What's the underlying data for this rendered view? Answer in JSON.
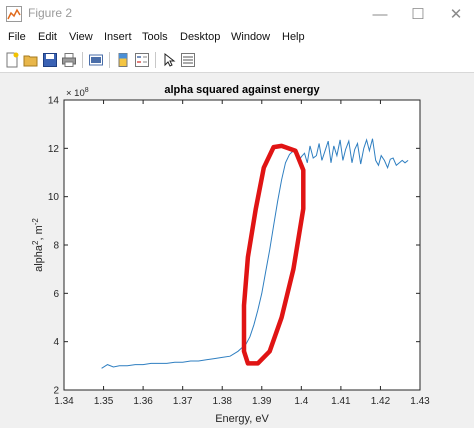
{
  "window": {
    "title": "Figure 2",
    "controls": {
      "minimize": "—",
      "maximize": "☐",
      "close": "✕"
    }
  },
  "menu": [
    "File",
    "Edit",
    "View",
    "Insert",
    "Tools",
    "Desktop",
    "Window",
    "Help"
  ],
  "toolbar": {
    "icons": [
      "new-figure-icon",
      "open-file-icon",
      "save-icon",
      "print-icon",
      "link-plot-icon",
      "insert-colorbar-icon",
      "insert-legend-icon",
      "edit-plot-icon",
      "property-inspector-icon"
    ]
  },
  "chart_data": {
    "type": "line",
    "title": "alpha squared against energy",
    "xlabel": "Energy, eV",
    "ylabel_base": "alpha",
    "ylabel_sup1": "2",
    "ylabel_mid": ", m",
    "ylabel_sup2": "-2",
    "y_multiplier_base": "× 10",
    "y_multiplier_exp": "8",
    "xlim": [
      1.34,
      1.43
    ],
    "ylim": [
      2,
      14
    ],
    "x_ticks": [
      "1.34",
      "1.35",
      "1.36",
      "1.37",
      "1.38",
      "1.39",
      "1.4",
      "1.41",
      "1.42",
      "1.43"
    ],
    "y_ticks": [
      "2",
      "4",
      "6",
      "8",
      "10",
      "12",
      "14"
    ],
    "grid": false,
    "line_color": "#2f7fc1",
    "annotation_color": "#e01414",
    "series": [
      {
        "x": [
          1.3495,
          1.351,
          1.3525,
          1.354,
          1.356,
          1.358,
          1.36,
          1.362,
          1.364,
          1.366,
          1.368,
          1.37,
          1.372,
          1.374,
          1.376,
          1.378,
          1.38,
          1.382,
          1.384,
          1.386,
          1.387,
          1.388,
          1.389,
          1.39,
          1.391,
          1.392,
          1.393,
          1.394,
          1.395,
          1.396,
          1.397,
          1.398,
          1.3985,
          1.399,
          1.3995,
          1.4,
          1.4008,
          1.4015,
          1.4022,
          1.403,
          1.4038,
          1.4045,
          1.4052,
          1.406,
          1.4068,
          1.4075,
          1.4082,
          1.409,
          1.4098,
          1.4105,
          1.4112,
          1.412,
          1.4128,
          1.4135,
          1.4142,
          1.415,
          1.4158,
          1.4165,
          1.4172,
          1.418,
          1.4188,
          1.4195,
          1.4202,
          1.421,
          1.4218,
          1.4225,
          1.4232,
          1.424,
          1.4248,
          1.4255,
          1.4262,
          1.427
        ],
        "y": [
          2.9,
          3.05,
          2.95,
          3.0,
          3.0,
          3.05,
          3.05,
          3.1,
          3.1,
          3.1,
          3.15,
          3.15,
          3.2,
          3.2,
          3.25,
          3.3,
          3.35,
          3.4,
          3.6,
          3.9,
          4.2,
          4.7,
          5.3,
          6.0,
          6.9,
          7.8,
          8.8,
          9.8,
          10.7,
          11.4,
          11.75,
          11.9,
          11.85,
          11.6,
          11.5,
          11.65,
          11.8,
          11.4,
          12.1,
          11.6,
          11.7,
          12.2,
          11.5,
          11.9,
          12.3,
          11.4,
          12.1,
          11.7,
          12.35,
          11.5,
          11.95,
          12.3,
          11.4,
          11.95,
          12.2,
          11.35,
          12.0,
          12.35,
          11.9,
          12.4,
          11.5,
          11.3,
          11.7,
          11.5,
          11.2,
          11.55,
          11.6,
          11.3,
          11.4,
          11.5,
          11.4,
          11.5
        ]
      }
    ],
    "annotation": {
      "shape": "hand-drawn loop",
      "outline": [
        [
          1.395,
          12.1
        ],
        [
          1.3985,
          11.9
        ],
        [
          1.4005,
          11.1
        ],
        [
          1.4005,
          9.5
        ],
        [
          1.398,
          7.0
        ],
        [
          1.395,
          5.0
        ],
        [
          1.392,
          3.6
        ],
        [
          1.389,
          3.1
        ],
        [
          1.3865,
          3.1
        ],
        [
          1.3855,
          3.6
        ],
        [
          1.3855,
          5.5
        ],
        [
          1.3865,
          7.5
        ],
        [
          1.3885,
          9.5
        ],
        [
          1.3905,
          11.2
        ],
        [
          1.393,
          12.05
        ],
        [
          1.395,
          12.1
        ]
      ]
    }
  }
}
